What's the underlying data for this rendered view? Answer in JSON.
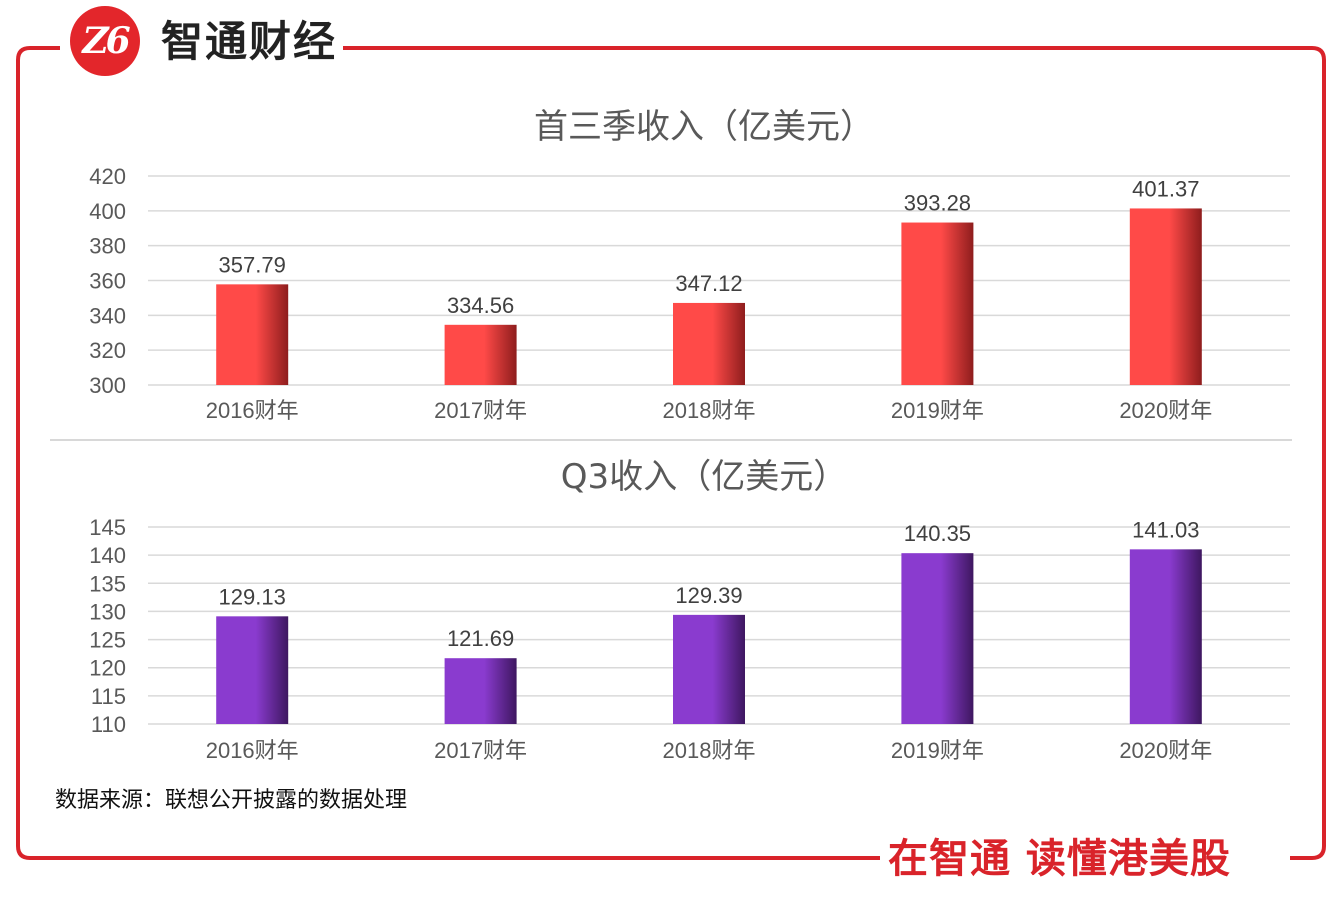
{
  "brand": {
    "logo_text": "Z6",
    "name": "智通财经",
    "slogan": "在智通  读懂港美股",
    "primary_color": "#e3262b"
  },
  "source_note": "数据来源：联想公开披露的数据处理",
  "chart_data": [
    {
      "type": "bar",
      "title": "首三季收入（亿美元）",
      "categories": [
        "2016财年",
        "2017财年",
        "2018财年",
        "2019财年",
        "2020财年"
      ],
      "values": [
        357.79,
        334.56,
        347.12,
        393.28,
        401.37
      ],
      "value_labels": [
        "357.79",
        "334.56",
        "347.12",
        "393.28",
        "401.37"
      ],
      "ylim": [
        300,
        420
      ],
      "yticks": [
        300,
        320,
        340,
        360,
        380,
        400,
        420
      ],
      "grid": true,
      "legend": "none",
      "xlabel": "",
      "ylabel": "",
      "bar_color_light": "#ff4a48",
      "bar_color_dark": "#8e1d1d"
    },
    {
      "type": "bar",
      "title": "Q3收入（亿美元）",
      "categories": [
        "2016财年",
        "2017财年",
        "2018财年",
        "2019财年",
        "2020财年"
      ],
      "values": [
        129.13,
        121.69,
        129.39,
        140.35,
        141.03
      ],
      "value_labels": [
        "129.13",
        "121.69",
        "129.39",
        "140.35",
        "141.03"
      ],
      "ylim": [
        110,
        145
      ],
      "yticks": [
        110,
        115,
        120,
        125,
        130,
        135,
        140,
        145
      ],
      "grid": true,
      "legend": "none",
      "xlabel": "",
      "ylabel": "",
      "bar_color_light": "#8a3bcf",
      "bar_color_dark": "#3e1760"
    }
  ]
}
